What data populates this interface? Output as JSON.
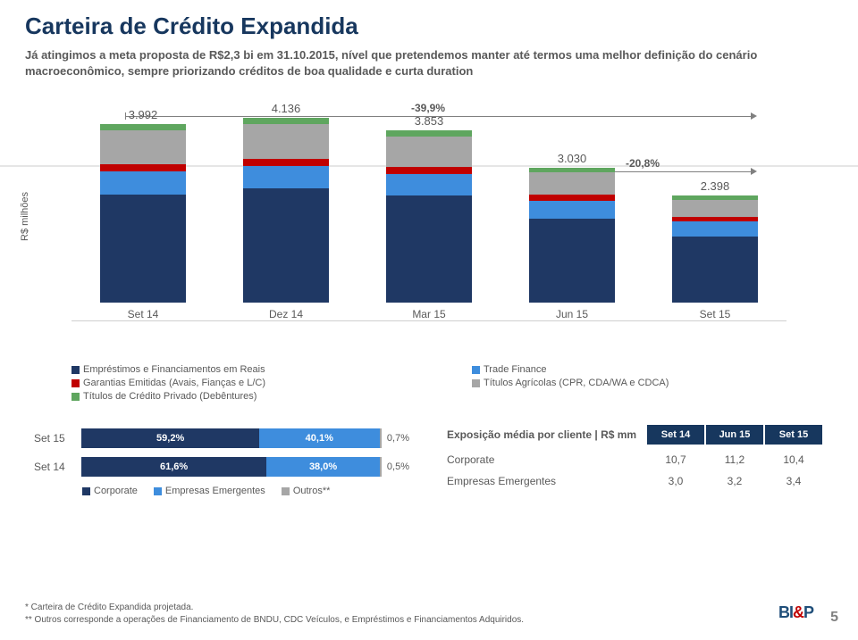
{
  "title": "Carteira de Crédito Expandida",
  "subtitle": "Já atingimos a meta proposta de R$2,3 bi em 31.10.2015, nível que pretendemos manter até termos uma melhor definição do cenário macroeconômico, sempre priorizando créditos de boa qualidade e curta duration",
  "chart": {
    "type": "stacked-bar",
    "ylabel": "R$ milhões",
    "ymax": 4200,
    "categories": [
      "Set  14",
      "Dez 14",
      "Mar 15",
      "Jun 15",
      "Set 15"
    ],
    "totals": [
      "3.992",
      "4.136",
      "3.853",
      "3.030",
      "2.398"
    ],
    "series": [
      {
        "name": "Empréstimos e Financiamentos em Reais",
        "color": "#1f3864",
        "values": [
          2420,
          2560,
          2410,
          1890,
          1490
        ]
      },
      {
        "name": "Trade Finance",
        "color": "#3e8ddd",
        "values": [
          520,
          500,
          480,
          400,
          330
        ]
      },
      {
        "name": "Garantias Emitidas (Avais, Fianças e L/C)",
        "color": "#c00000",
        "values": [
          160,
          170,
          150,
          130,
          95
        ]
      },
      {
        "name": "Títulos Agrícolas (CPR, CDA/WA e CDCA)",
        "color": "#a6a6a6",
        "values": [
          760,
          776,
          683,
          510,
          393
        ]
      },
      {
        "name": "Títulos de Crédito Privado (Debêntures)",
        "color": "#5fa65f",
        "values": [
          132,
          130,
          130,
          100,
          90
        ]
      }
    ],
    "ann_long": "-39,9%",
    "ann_short": "-20,8%",
    "legend_left": [
      {
        "color": "#1f3864",
        "label": "Empréstimos e Financiamentos em Reais"
      },
      {
        "color": "#c00000",
        "label": "Garantias Emitidas (Avais, Fianças e L/C)"
      },
      {
        "color": "#5fa65f",
        "label": "Títulos de Crédito Privado (Debêntures)"
      }
    ],
    "legend_right": [
      {
        "color": "#3e8ddd",
        "label": "Trade Finance"
      },
      {
        "color": "#a6a6a6",
        "label": "Títulos Agrícolas (CPR, CDA/WA e CDCA)"
      }
    ]
  },
  "hchart": {
    "type": "stacked-hbar",
    "rows": [
      {
        "label": "Set 15",
        "segs": [
          {
            "v": 59.2,
            "t": "59,2%",
            "color": "#1f3864"
          },
          {
            "v": 40.1,
            "t": "40,1%",
            "color": "#3e8ddd"
          },
          {
            "v": 0.7,
            "t": "0,7%",
            "color": "#a6a6a6",
            "outside": true
          }
        ]
      },
      {
        "label": "Set 14",
        "segs": [
          {
            "v": 61.6,
            "t": "61,6%",
            "color": "#1f3864"
          },
          {
            "v": 38.0,
            "t": "38,0%",
            "color": "#3e8ddd"
          },
          {
            "v": 0.5,
            "t": "0,5%",
            "color": "#a6a6a6",
            "outside": true
          }
        ]
      }
    ],
    "legend": [
      {
        "color": "#1f3864",
        "label": "Corporate"
      },
      {
        "color": "#3e8ddd",
        "label": "Empresas Emergentes"
      },
      {
        "color": "#a6a6a6",
        "label": "Outros**"
      }
    ]
  },
  "table": {
    "lead": "Exposição média por cliente | R$ mm",
    "cols": [
      "Set 14",
      "Jun 15",
      "Set 15"
    ],
    "rows": [
      {
        "name": "Corporate",
        "vals": [
          "10,7",
          "11,2",
          "10,4"
        ]
      },
      {
        "name": "Empresas Emergentes",
        "vals": [
          "3,0",
          "3,2",
          "3,4"
        ]
      }
    ]
  },
  "footnotes": {
    "f1": "*  Carteira de Crédito Expandida projetada.",
    "f2": "** Outros corresponde a operações de Financiamento de BNDU, CDC Veículos, e Empréstimos e Financiamentos Adquiridos."
  },
  "page": "5"
}
